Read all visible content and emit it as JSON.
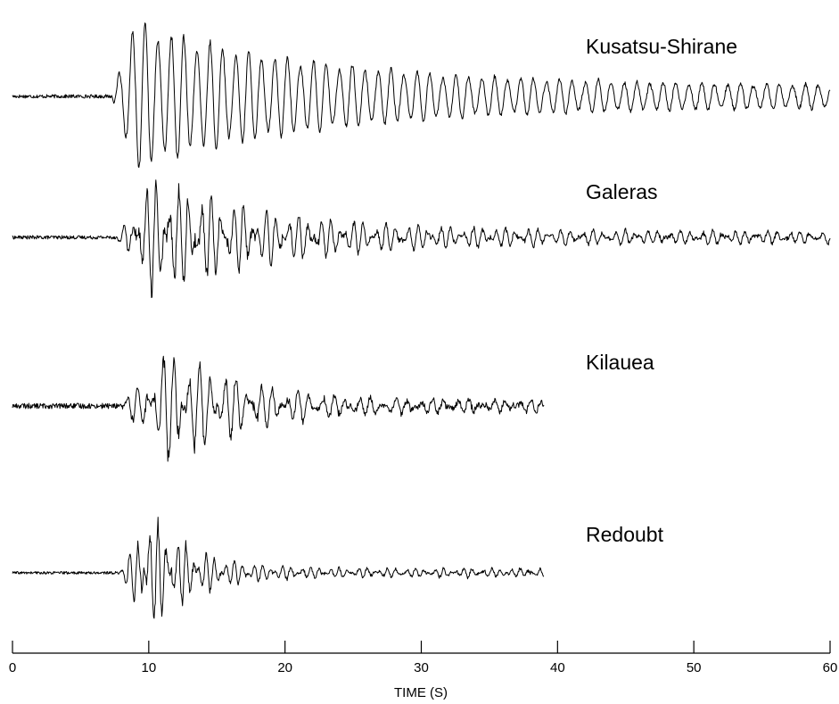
{
  "chart_data": {
    "type": "line",
    "title": "",
    "xlabel": "TIME  (S)",
    "ylabel": "",
    "xlim": [
      0,
      60
    ],
    "xticks": [
      0,
      10,
      20,
      30,
      40,
      50,
      60
    ],
    "grid": false,
    "legend": "none",
    "series": [
      {
        "name": "Kusatsu-Shirane",
        "x_end": 60,
        "onset": 7.3,
        "peak_time": 8.8,
        "dominant_period_s": 0.95,
        "relative_peak_amplitude": 1.0,
        "coda": "long, slowly decaying monochromatic oscillation lasting to 60 s"
      },
      {
        "name": "Galeras",
        "x_end": 60,
        "onset": 7.6,
        "peak_time": 10.5,
        "dominant_period_s": 0.8,
        "relative_peak_amplitude": 1.0,
        "coda": "decays to low-amplitude noise by ~35 s"
      },
      {
        "name": "Kilauea",
        "x_end": 39,
        "onset": 7.8,
        "peak_time": 12.0,
        "dominant_period_s": 0.9,
        "relative_peak_amplitude": 1.0,
        "coda": "decays to noise by ~20 s, trace ends at ~39 s"
      },
      {
        "name": "Redoubt",
        "x_end": 39,
        "onset": 7.8,
        "peak_time": 10.0,
        "dominant_period_s": 0.7,
        "relative_peak_amplitude": 1.0,
        "coda": "decays quickly, small oscillation until ~39 s"
      }
    ]
  }
}
